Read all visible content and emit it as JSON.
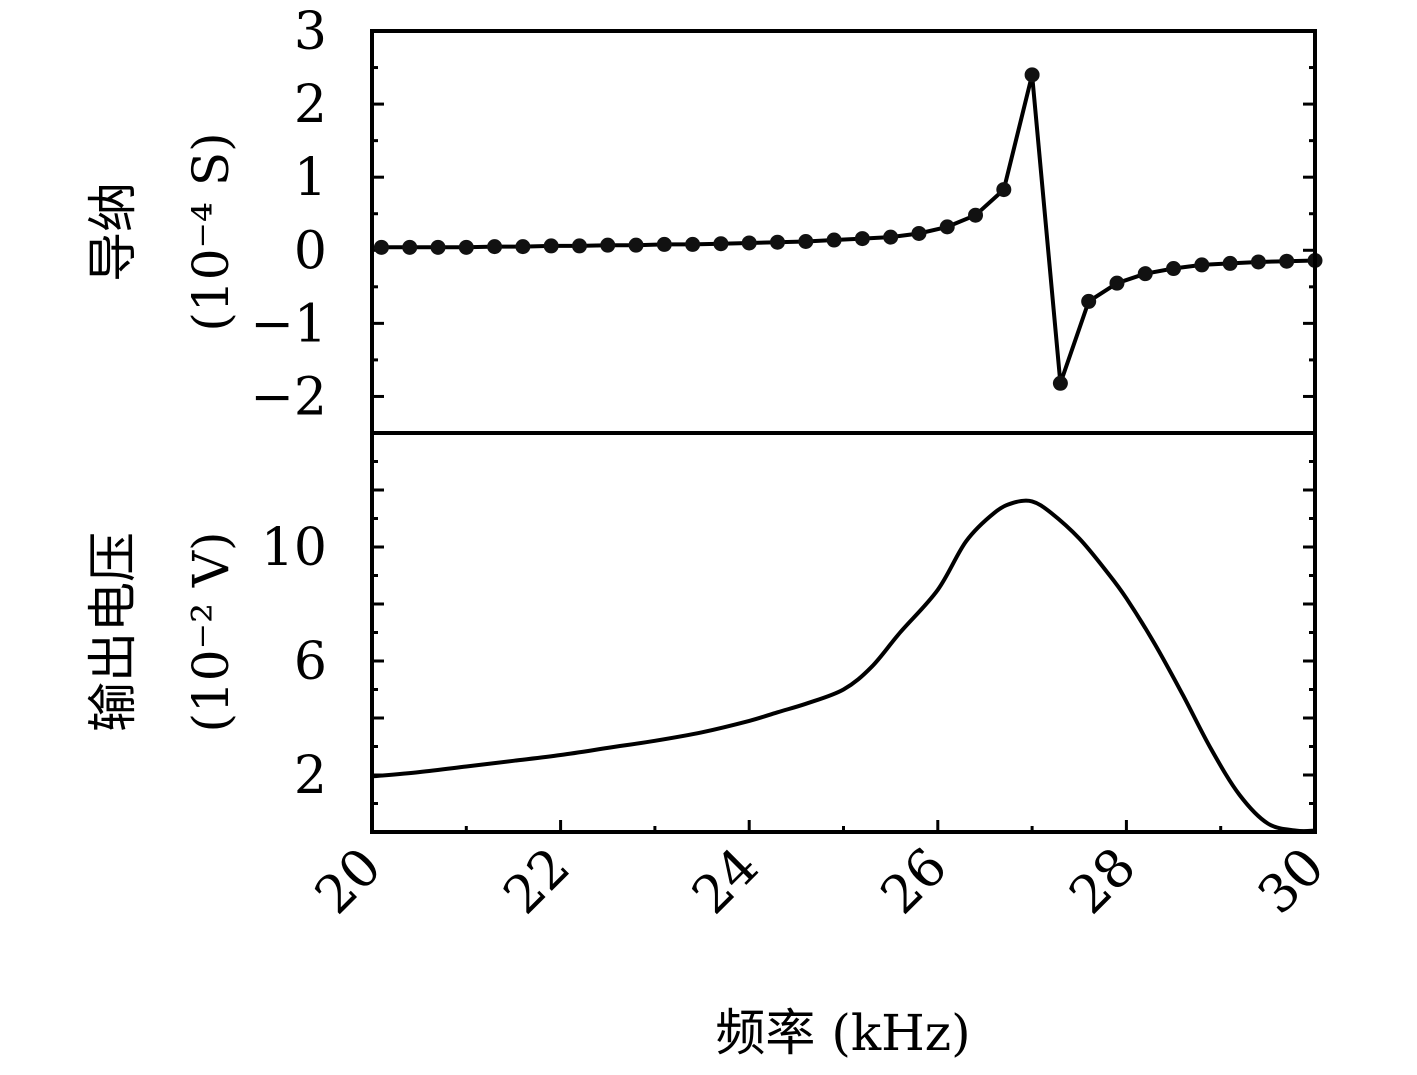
{
  "colors": {
    "line": "#000000",
    "marker": "#111111",
    "background": "#ffffff"
  },
  "chart_data": [
    {
      "type": "line",
      "panel": "top",
      "ylabel_line1": "导纳",
      "ylabel_line2": "(10⁻⁴ S)",
      "xlim": [
        20,
        30
      ],
      "ylim": [
        -2.5,
        3
      ],
      "yticks": [
        3,
        2,
        1,
        0,
        -1,
        -2
      ],
      "ytick_labels": [
        "3",
        "2",
        "1",
        "0",
        "−1",
        "−2"
      ],
      "markers": true,
      "grid": false,
      "series": [
        {
          "x": [
            20.1,
            20.4,
            20.7,
            21.0,
            21.3,
            21.6,
            21.9,
            22.2,
            22.5,
            22.8,
            23.1,
            23.4,
            23.7,
            24.0,
            24.3,
            24.6,
            24.9,
            25.2,
            25.5,
            25.8,
            26.1,
            26.4,
            26.7,
            27.0,
            27.3,
            27.6,
            27.9,
            28.2,
            28.5,
            28.8,
            29.1,
            29.4,
            29.7,
            30.0
          ],
          "y": [
            0.04,
            0.04,
            0.04,
            0.04,
            0.05,
            0.05,
            0.06,
            0.06,
            0.07,
            0.07,
            0.08,
            0.08,
            0.09,
            0.1,
            0.11,
            0.12,
            0.14,
            0.16,
            0.18,
            0.23,
            0.32,
            0.48,
            0.83,
            2.4,
            -1.82,
            -0.7,
            -0.45,
            -0.32,
            -0.25,
            -0.2,
            -0.18,
            -0.16,
            -0.15,
            -0.14
          ]
        }
      ]
    },
    {
      "type": "line",
      "panel": "bottom",
      "ylabel_line1": "输出电压",
      "ylabel_line2": "(10⁻² V)",
      "xlabel": "频率 (kHz)",
      "xlim": [
        20,
        30
      ],
      "ylim": [
        0,
        14
      ],
      "xticks": [
        20,
        22,
        24,
        26,
        28,
        30
      ],
      "xtick_labels": [
        "20",
        "22",
        "24",
        "26",
        "28",
        "30"
      ],
      "yticks": [
        2,
        6,
        10
      ],
      "ytick_labels": [
        "2",
        "6",
        "10"
      ],
      "markers": false,
      "grid": false,
      "series": [
        {
          "x": [
            20.0,
            20.5,
            21.0,
            21.5,
            22.0,
            22.5,
            23.0,
            23.5,
            24.0,
            24.3,
            24.6,
            25.0,
            25.3,
            25.6,
            26.0,
            26.3,
            26.6,
            26.8,
            27.0,
            27.2,
            27.5,
            27.8,
            28.0,
            28.3,
            28.6,
            28.9,
            29.2,
            29.5,
            29.8,
            30.0
          ],
          "y": [
            1.95,
            2.1,
            2.3,
            2.5,
            2.7,
            2.95,
            3.2,
            3.5,
            3.9,
            4.2,
            4.5,
            5.0,
            5.8,
            7.0,
            8.5,
            10.2,
            11.2,
            11.55,
            11.6,
            11.2,
            10.3,
            9.1,
            8.2,
            6.6,
            4.8,
            2.9,
            1.3,
            0.3,
            0.05,
            0.05
          ]
        }
      ]
    }
  ]
}
